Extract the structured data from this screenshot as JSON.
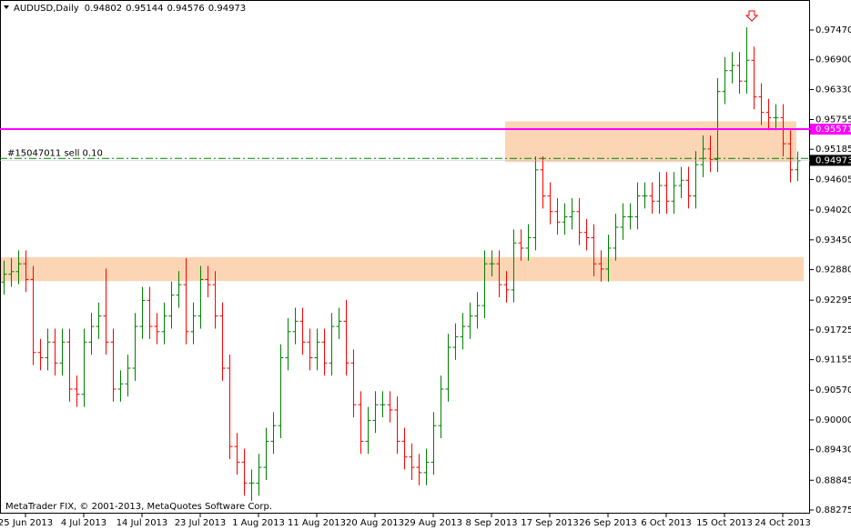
{
  "chart_data": {
    "type": "ohlc",
    "title": "AUDUSD,Daily",
    "copyright": "MetaTrader FIX, © 2001-2013, MetaQuotes Software Corp.",
    "up_color": "#008000",
    "down_color": "#ff0000",
    "categories": [
      null,
      null,
      null,
      "25 Jun 2013",
      null,
      null,
      null,
      null,
      null,
      null,
      null,
      "4 Jul 2013",
      null,
      null,
      null,
      null,
      null,
      null,
      null,
      "14 Jul 2013",
      null,
      null,
      null,
      null,
      null,
      null,
      null,
      "23 Jul 2013",
      null,
      null,
      null,
      null,
      null,
      null,
      null,
      "1 Aug 2013",
      null,
      null,
      null,
      null,
      null,
      null,
      null,
      "11 Aug 2013",
      null,
      null,
      null,
      null,
      null,
      null,
      null,
      "20 Aug 2013",
      null,
      null,
      null,
      null,
      null,
      null,
      null,
      "29 Aug 2013",
      null,
      null,
      null,
      null,
      null,
      null,
      null,
      "8 Sep 2013",
      null,
      null,
      null,
      null,
      null,
      null,
      null,
      "17 Sep 2013",
      null,
      null,
      null,
      null,
      null,
      null,
      null,
      "26 Sep 2013",
      null,
      null,
      null,
      null,
      null,
      null,
      null,
      "6 Oct 2013",
      null,
      null,
      null,
      null,
      null,
      null,
      null,
      "15 Oct 2013",
      null,
      null,
      null,
      null,
      null,
      null,
      null,
      "24 Oct 2013",
      null,
      null
    ],
    "open": [
      0.9265,
      0.928,
      0.9285,
      0.93,
      0.927,
      0.913,
      0.912,
      0.915,
      0.911,
      0.915,
      0.906,
      0.905,
      0.915,
      0.918,
      0.92,
      0.915,
      0.906,
      0.907,
      0.91,
      0.918,
      0.923,
      0.918,
      0.917,
      0.92,
      0.924,
      0.926,
      0.917,
      0.92,
      0.927,
      0.926,
      0.92,
      0.91,
      0.895,
      0.892,
      0.888,
      0.888,
      0.891,
      0.896,
      0.899,
      0.912,
      0.917,
      0.919,
      0.915,
      0.912,
      0.915,
      0.911,
      0.918,
      0.919,
      0.911,
      0.903,
      0.896,
      0.9,
      0.903,
      0.903,
      0.902,
      0.896,
      0.893,
      0.891,
      0.89,
      0.892,
      0.899,
      0.906,
      0.914,
      0.916,
      0.918,
      0.92,
      0.922,
      0.93,
      0.93,
      0.926,
      0.925,
      0.934,
      0.933,
      0.935,
      0.948,
      0.943,
      0.94,
      0.938,
      0.939,
      0.94,
      0.936,
      0.935,
      0.93,
      0.929,
      0.933,
      0.937,
      0.939,
      0.939,
      0.943,
      0.943,
      0.942,
      0.945,
      0.942,
      0.945,
      0.946,
      0.943,
      0.949,
      0.952,
      0.95,
      0.963,
      0.967,
      0.968,
      0.965,
      0.969,
      0.962,
      0.959,
      0.958,
      0.958,
      0.953,
      0.94802
    ],
    "high": [
      0.9305,
      0.931,
      0.9325,
      0.9325,
      0.9295,
      0.9155,
      0.9175,
      0.9175,
      0.9175,
      0.9175,
      0.9085,
      0.9175,
      0.9205,
      0.9225,
      0.929,
      0.9175,
      0.9095,
      0.9125,
      0.9205,
      0.9255,
      0.9255,
      0.9205,
      0.9225,
      0.9265,
      0.9285,
      0.931,
      0.9225,
      0.9295,
      0.9295,
      0.9285,
      0.9225,
      0.9125,
      0.8975,
      0.8945,
      0.8905,
      0.8935,
      0.8985,
      0.9015,
      0.9145,
      0.9195,
      0.9215,
      0.9215,
      0.9175,
      0.9175,
      0.9175,
      0.9205,
      0.9215,
      0.923,
      0.9135,
      0.9055,
      0.9025,
      0.9055,
      0.9055,
      0.9055,
      0.9045,
      0.8985,
      0.8955,
      0.8935,
      0.8945,
      0.9015,
      0.9085,
      0.9165,
      0.9185,
      0.9205,
      0.9225,
      0.9245,
      0.9325,
      0.9325,
      0.9325,
      0.9285,
      0.9365,
      0.9365,
      0.9375,
      0.9505,
      0.9505,
      0.9455,
      0.9425,
      0.9415,
      0.9425,
      0.9425,
      0.9385,
      0.9375,
      0.9325,
      0.9355,
      0.9395,
      0.9415,
      0.9415,
      0.9455,
      0.9455,
      0.9455,
      0.9475,
      0.9475,
      0.9475,
      0.9485,
      0.9485,
      0.9515,
      0.9545,
      0.9545,
      0.9655,
      0.9695,
      0.9705,
      0.9705,
      0.9752,
      0.9715,
      0.9645,
      0.9615,
      0.9605,
      0.9605,
      0.9555,
      0.95144
    ],
    "low": [
      0.924,
      0.9255,
      0.926,
      0.9245,
      0.9105,
      0.9095,
      0.9095,
      0.9085,
      0.9085,
      0.9035,
      0.9025,
      0.9025,
      0.9125,
      0.9155,
      0.9125,
      0.9035,
      0.9035,
      0.9045,
      0.9075,
      0.9155,
      0.9155,
      0.9145,
      0.9145,
      0.9175,
      0.9215,
      0.9145,
      0.9145,
      0.9175,
      0.9235,
      0.9175,
      0.9075,
      0.8925,
      0.8895,
      0.8855,
      0.8845,
      0.8855,
      0.8885,
      0.8935,
      0.8965,
      0.9095,
      0.9145,
      0.9125,
      0.9095,
      0.9095,
      0.9085,
      0.9085,
      0.9155,
      0.9085,
      0.9005,
      0.8935,
      0.8935,
      0.8975,
      0.9005,
      0.8995,
      0.8935,
      0.8905,
      0.8885,
      0.8875,
      0.8875,
      0.8895,
      0.8965,
      0.9035,
      0.9115,
      0.9135,
      0.9155,
      0.9175,
      0.9195,
      0.9275,
      0.9235,
      0.9225,
      0.9225,
      0.9305,
      0.9305,
      0.9325,
      0.9405,
      0.9375,
      0.9355,
      0.9355,
      0.9365,
      0.9335,
      0.9325,
      0.9275,
      0.9265,
      0.9265,
      0.9305,
      0.9345,
      0.9365,
      0.9365,
      0.9405,
      0.9395,
      0.9395,
      0.9395,
      0.9395,
      0.9425,
      0.9405,
      0.9405,
      0.9465,
      0.9475,
      0.9475,
      0.9605,
      0.9645,
      0.9625,
      0.9625,
      0.9595,
      0.9565,
      0.9555,
      0.9555,
      0.9505,
      0.9455,
      0.94576
    ],
    "close": [
      0.928,
      0.9285,
      0.93,
      0.927,
      0.913,
      0.912,
      0.915,
      0.911,
      0.915,
      0.906,
      0.905,
      0.915,
      0.918,
      0.92,
      0.915,
      0.906,
      0.907,
      0.91,
      0.918,
      0.923,
      0.918,
      0.917,
      0.92,
      0.924,
      0.926,
      0.917,
      0.92,
      0.927,
      0.926,
      0.92,
      0.91,
      0.895,
      0.892,
      0.888,
      0.888,
      0.891,
      0.896,
      0.899,
      0.912,
      0.917,
      0.919,
      0.915,
      0.912,
      0.915,
      0.911,
      0.918,
      0.919,
      0.911,
      0.903,
      0.896,
      0.9,
      0.903,
      0.903,
      0.902,
      0.896,
      0.893,
      0.891,
      0.89,
      0.892,
      0.899,
      0.906,
      0.914,
      0.916,
      0.918,
      0.92,
      0.922,
      0.93,
      0.93,
      0.926,
      0.925,
      0.934,
      0.933,
      0.935,
      0.948,
      0.943,
      0.94,
      0.938,
      0.939,
      0.94,
      0.936,
      0.935,
      0.93,
      0.929,
      0.933,
      0.937,
      0.939,
      0.939,
      0.943,
      0.943,
      0.942,
      0.945,
      0.942,
      0.945,
      0.946,
      0.943,
      0.949,
      0.952,
      0.95,
      0.963,
      0.967,
      0.968,
      0.965,
      0.969,
      0.962,
      0.959,
      0.958,
      0.958,
      0.953,
      0.948,
      0.94973
    ],
    "ylim": [
      0.88205,
      0.98045
    ],
    "yticks": [
      {
        "value": 0.9747,
        "label": "0.97470"
      },
      {
        "value": 0.969,
        "label": "0.96900"
      },
      {
        "value": 0.9633,
        "label": "0.96330"
      },
      0.95755,
      0.95185,
      0.94605,
      {
        "value": 0.9402,
        "label": "0.94020"
      },
      {
        "value": 0.9345,
        "label": "0.93450"
      },
      {
        "value": 0.9288,
        "label": "0.92880"
      },
      0.92295,
      0.91725,
      0.91155,
      {
        "value": 0.9057,
        "label": "0.90570"
      },
      {
        "value": 0.9,
        "label": "0.90000"
      },
      {
        "value": 0.8943,
        "label": "0.89430"
      },
      0.88845,
      0.88275
    ],
    "zones": [
      {
        "top": 0.9572,
        "bottom": 0.9494,
        "color": "#fcd5b4"
      },
      {
        "top": 0.9312,
        "bottom": 0.9266,
        "color": "#fcd5b4"
      }
    ],
    "level_line": {
      "value": 0.95571,
      "color": "#ff00ff"
    },
    "order_line": {
      "text": "#15047011 sell 0.10",
      "value": 0.9501,
      "color": "#008000"
    }
  }
}
